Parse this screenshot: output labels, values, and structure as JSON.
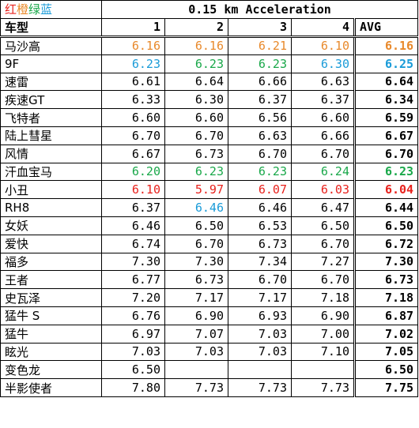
{
  "legend": [
    {
      "char": "红",
      "color": "#e8221d"
    },
    {
      "char": "橙",
      "color": "#ea8a2a"
    },
    {
      "char": "绿",
      "color": "#1aa84a"
    },
    {
      "char": "蓝",
      "color": "#1a9bd8"
    }
  ],
  "title": "0.15 km Acceleration",
  "header": {
    "name": "车型",
    "runs": [
      "1",
      "2",
      "3",
      "4"
    ],
    "avg": "AVG"
  },
  "colors": {
    "orange": "#e8892b",
    "blue": "#1a9bd8",
    "green": "#1aa84a",
    "red": "#e8221d",
    "black": "#000000"
  },
  "rows": [
    {
      "name": "马沙高",
      "runs": [
        {
          "v": "6.16",
          "c": "orange"
        },
        {
          "v": "6.16",
          "c": "orange"
        },
        {
          "v": "6.21",
          "c": "orange"
        },
        {
          "v": "6.10",
          "c": "orange"
        }
      ],
      "avg": {
        "v": "6.16",
        "c": "orange"
      }
    },
    {
      "name": "9F",
      "runs": [
        {
          "v": "6.23",
          "c": "blue"
        },
        {
          "v": "6.23",
          "c": "green"
        },
        {
          "v": "6.23",
          "c": "green"
        },
        {
          "v": "6.30",
          "c": "blue"
        }
      ],
      "avg": {
        "v": "6.25",
        "c": "blue"
      }
    },
    {
      "name": "速雷",
      "runs": [
        {
          "v": "6.61"
        },
        {
          "v": "6.64"
        },
        {
          "v": "6.66"
        },
        {
          "v": "6.63"
        }
      ],
      "avg": {
        "v": "6.64"
      }
    },
    {
      "name": "疾速GT",
      "runs": [
        {
          "v": "6.33"
        },
        {
          "v": "6.30"
        },
        {
          "v": "6.37"
        },
        {
          "v": "6.37"
        }
      ],
      "avg": {
        "v": "6.34"
      }
    },
    {
      "name": "飞特者",
      "runs": [
        {
          "v": "6.60"
        },
        {
          "v": "6.60"
        },
        {
          "v": "6.56"
        },
        {
          "v": "6.60"
        }
      ],
      "avg": {
        "v": "6.59"
      }
    },
    {
      "name": "陆上彗星",
      "runs": [
        {
          "v": "6.70"
        },
        {
          "v": "6.70"
        },
        {
          "v": "6.63"
        },
        {
          "v": "6.66"
        }
      ],
      "avg": {
        "v": "6.67"
      }
    },
    {
      "name": "风情",
      "runs": [
        {
          "v": "6.67"
        },
        {
          "v": "6.73"
        },
        {
          "v": "6.70"
        },
        {
          "v": "6.70"
        }
      ],
      "avg": {
        "v": "6.70"
      }
    },
    {
      "name": "汗血宝马",
      "runs": [
        {
          "v": "6.20",
          "c": "green"
        },
        {
          "v": "6.23",
          "c": "green"
        },
        {
          "v": "6.23",
          "c": "green"
        },
        {
          "v": "6.24",
          "c": "green"
        }
      ],
      "avg": {
        "v": "6.23",
        "c": "green"
      }
    },
    {
      "name": "小丑",
      "runs": [
        {
          "v": "6.10",
          "c": "red"
        },
        {
          "v": "5.97",
          "c": "red"
        },
        {
          "v": "6.07",
          "c": "red"
        },
        {
          "v": "6.03",
          "c": "red"
        }
      ],
      "avg": {
        "v": "6.04",
        "c": "red"
      }
    },
    {
      "name": "RH8",
      "runs": [
        {
          "v": "6.37"
        },
        {
          "v": "6.46",
          "c": "blue"
        },
        {
          "v": "6.46"
        },
        {
          "v": "6.47"
        }
      ],
      "avg": {
        "v": "6.44"
      }
    },
    {
      "name": "女妖",
      "runs": [
        {
          "v": "6.46"
        },
        {
          "v": "6.50"
        },
        {
          "v": "6.53"
        },
        {
          "v": "6.50"
        }
      ],
      "avg": {
        "v": "6.50"
      }
    },
    {
      "name": "爱快",
      "runs": [
        {
          "v": "6.74"
        },
        {
          "v": "6.70"
        },
        {
          "v": "6.73"
        },
        {
          "v": "6.70"
        }
      ],
      "avg": {
        "v": "6.72"
      }
    },
    {
      "name": "福多",
      "runs": [
        {
          "v": "7.30"
        },
        {
          "v": "7.30"
        },
        {
          "v": "7.34"
        },
        {
          "v": "7.27"
        }
      ],
      "avg": {
        "v": "7.30"
      }
    },
    {
      "name": "王者",
      "runs": [
        {
          "v": "6.77"
        },
        {
          "v": "6.73"
        },
        {
          "v": "6.70"
        },
        {
          "v": "6.70"
        }
      ],
      "avg": {
        "v": "6.73"
      }
    },
    {
      "name": "史瓦泽",
      "runs": [
        {
          "v": "7.20"
        },
        {
          "v": "7.17"
        },
        {
          "v": "7.17"
        },
        {
          "v": "7.18"
        }
      ],
      "avg": {
        "v": "7.18"
      }
    },
    {
      "name": "猛牛 S",
      "runs": [
        {
          "v": "6.76"
        },
        {
          "v": "6.90"
        },
        {
          "v": "6.93"
        },
        {
          "v": "6.90"
        }
      ],
      "avg": {
        "v": "6.87"
      }
    },
    {
      "name": "猛牛",
      "runs": [
        {
          "v": "6.97"
        },
        {
          "v": "7.07"
        },
        {
          "v": "7.03"
        },
        {
          "v": "7.00"
        }
      ],
      "avg": {
        "v": "7.02"
      }
    },
    {
      "name": "眩光",
      "runs": [
        {
          "v": "7.03"
        },
        {
          "v": "7.03"
        },
        {
          "v": "7.03"
        },
        {
          "v": "7.10"
        }
      ],
      "avg": {
        "v": "7.05"
      }
    },
    {
      "name": "变色龙",
      "runs": [
        {
          "v": "6.50"
        },
        {
          "v": ""
        },
        {
          "v": ""
        },
        {
          "v": ""
        }
      ],
      "avg": {
        "v": "6.50"
      }
    },
    {
      "name": "半影使者",
      "runs": [
        {
          "v": "7.80"
        },
        {
          "v": "7.73"
        },
        {
          "v": "7.73"
        },
        {
          "v": "7.73"
        }
      ],
      "avg": {
        "v": "7.75"
      }
    }
  ]
}
